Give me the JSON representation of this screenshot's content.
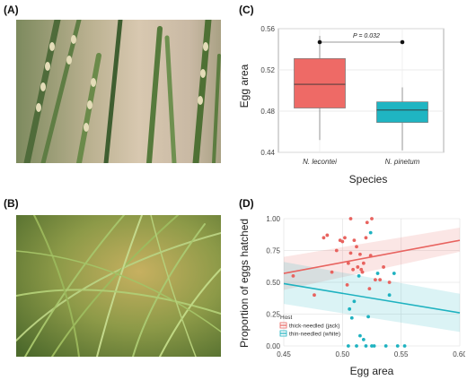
{
  "panels": {
    "a": "(A)",
    "b": "(B)",
    "c": "(C)",
    "d": "(D)"
  },
  "colors": {
    "lecontei": "#EE6A66",
    "pinetum": "#1FB5C2",
    "thick": "#E8635F",
    "thin": "#1EB2C0"
  },
  "chart_data": [
    {
      "type": "box",
      "ylabel": "Egg area",
      "xlabel": "Species",
      "ylim": [
        0.44,
        0.56
      ],
      "yticks": [
        "0.44",
        "0.48",
        "0.52",
        "0.56"
      ],
      "grid": true,
      "annotation": "P = 0.032",
      "categories": [
        "N. lecontei",
        "N. pinetum"
      ],
      "boxes": [
        {
          "name": "N. lecontei",
          "min": 0.452,
          "q1": 0.483,
          "median": 0.506,
          "q3": 0.531,
          "max": 0.553
        },
        {
          "name": "N. pinetum",
          "min": 0.442,
          "q1": 0.469,
          "median": 0.481,
          "q3": 0.489,
          "max": 0.503
        }
      ]
    },
    {
      "type": "scatter",
      "ylabel": "Proportion of eggs hatched",
      "xlabel": "Egg area",
      "xlim": [
        0.45,
        0.6
      ],
      "ylim": [
        0,
        1
      ],
      "xticks": [
        "0.45",
        "0.50",
        "0.55",
        "0.60"
      ],
      "yticks": [
        "0.00",
        "0.25",
        "0.50",
        "0.75",
        "1.00"
      ],
      "grid": true,
      "legend": {
        "title": "Host",
        "placement": "bottom-left"
      },
      "series": [
        {
          "name": "thick-needled (jack)",
          "points": [
            [
              0.458,
              0.55
            ],
            [
              0.476,
              0.4
            ],
            [
              0.484,
              0.85
            ],
            [
              0.487,
              0.87
            ],
            [
              0.491,
              0.58
            ],
            [
              0.495,
              0.75
            ],
            [
              0.498,
              0.83
            ],
            [
              0.5,
              0.82
            ],
            [
              0.502,
              0.85
            ],
            [
              0.504,
              0.48
            ],
            [
              0.505,
              0.65
            ],
            [
              0.507,
              0.73
            ],
            [
              0.507,
              1.0
            ],
            [
              0.509,
              0.6
            ],
            [
              0.51,
              0.83
            ],
            [
              0.512,
              0.78
            ],
            [
              0.513,
              0.62
            ],
            [
              0.515,
              0.72
            ],
            [
              0.516,
              0.6
            ],
            [
              0.517,
              0.58
            ],
            [
              0.518,
              0.65
            ],
            [
              0.52,
              0.85
            ],
            [
              0.521,
              0.97
            ],
            [
              0.523,
              0.45
            ],
            [
              0.524,
              0.71
            ],
            [
              0.525,
              1.0
            ],
            [
              0.528,
              0.52
            ],
            [
              0.532,
              0.52
            ],
            [
              0.535,
              0.62
            ],
            [
              0.54,
              0.5
            ]
          ],
          "fit": {
            "x": [
              0.45,
              0.6
            ],
            "y": [
              0.57,
              0.83
            ]
          },
          "ci_low": [
            0.44,
            0.74
          ],
          "ci_high": [
            0.7,
            0.93
          ]
        },
        {
          "name": "thin-needled (white)",
          "points": [
            [
              0.505,
              0.0
            ],
            [
              0.506,
              0.29
            ],
            [
              0.508,
              0.22
            ],
            [
              0.51,
              0.35
            ],
            [
              0.512,
              0.0
            ],
            [
              0.514,
              0.55
            ],
            [
              0.515,
              0.08
            ],
            [
              0.518,
              0.05
            ],
            [
              0.52,
              0.0
            ],
            [
              0.522,
              0.23
            ],
            [
              0.524,
              0.89
            ],
            [
              0.525,
              0.0
            ],
            [
              0.527,
              0.0
            ],
            [
              0.53,
              0.57
            ],
            [
              0.537,
              0.0
            ],
            [
              0.54,
              0.4
            ],
            [
              0.544,
              0.57
            ],
            [
              0.547,
              0.0
            ],
            [
              0.553,
              0.0
            ]
          ],
          "fit": {
            "x": [
              0.45,
              0.6
            ],
            "y": [
              0.49,
              0.26
            ]
          },
          "ci_low": [
            0.33,
            0.11
          ],
          "ci_high": [
            0.66,
            0.41
          ]
        }
      ]
    }
  ]
}
